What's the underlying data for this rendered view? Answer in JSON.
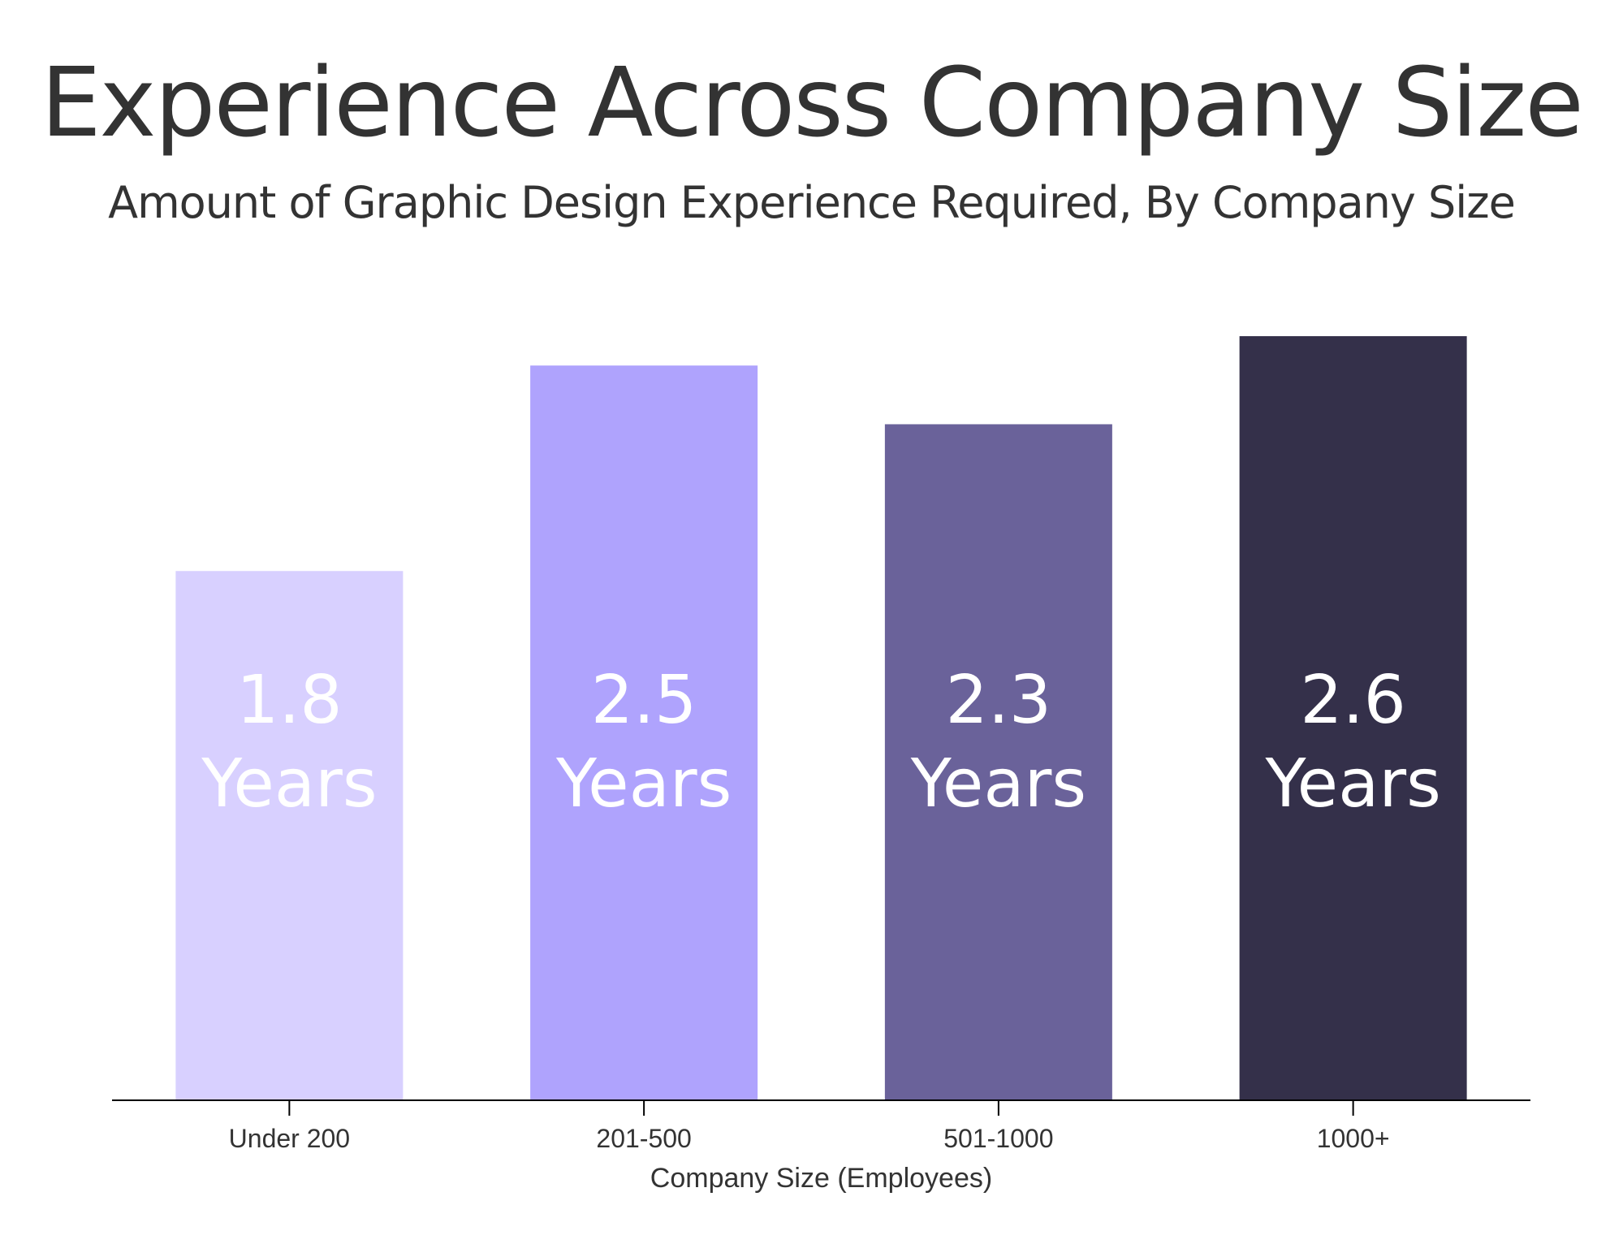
{
  "chart_data": {
    "type": "bar",
    "title": "Experience Across Company Size",
    "subtitle": "Amount of Graphic Design Experience Required, By Company Size",
    "xlabel": "Company Size (Employees)",
    "ylabel": "",
    "categories": [
      "Under 200",
      "201-500",
      "501-1000",
      "1000+"
    ],
    "values": [
      1.8,
      2.5,
      2.3,
      2.6
    ],
    "data_labels": [
      [
        "1.8",
        "Years"
      ],
      [
        "2.5",
        "Years"
      ],
      [
        "2.3",
        "Years"
      ],
      [
        "2.6",
        "Years"
      ]
    ],
    "colors": [
      "#d8d0ff",
      "#afa3fd",
      "#6a629a",
      "#34304a"
    ],
    "label_colors": [
      "#ffffff",
      "#ffffff",
      "#ffffff",
      "#ffffff"
    ],
    "ylim": [
      0,
      2.6
    ],
    "grid": false,
    "legend": "none"
  }
}
